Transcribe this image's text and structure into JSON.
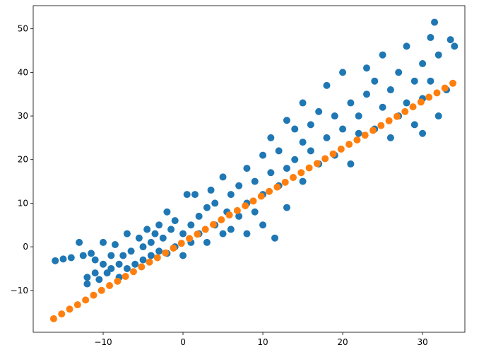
{
  "chart_data": {
    "type": "scatter",
    "xlim": [
      -18.76,
      35.3
    ],
    "ylim": [
      -19.6,
      55.3
    ],
    "xticks": [
      {
        "value": -10,
        "label": "−10"
      },
      0,
      10,
      20,
      30
    ],
    "yticks": [
      {
        "value": -10,
        "label": "−10"
      },
      0,
      10,
      20,
      30,
      40,
      50
    ],
    "grid": false,
    "series": [
      {
        "color": "#1f77b4",
        "x": [
          -16,
          -15,
          -14,
          -13,
          -12.5,
          -12,
          -12,
          -11.5,
          -11,
          -11,
          -10.5,
          -10,
          -10,
          -9.5,
          -9,
          -9,
          -8.5,
          -8,
          -8,
          -7.5,
          -7,
          -7,
          -6.5,
          -6,
          -5.5,
          -5,
          -5,
          -4.5,
          -4,
          -4,
          -3.5,
          -3,
          -3,
          -2.5,
          -2,
          -2,
          -1.5,
          -1,
          -1,
          0,
          0,
          0.5,
          1,
          1,
          1.5,
          2,
          2,
          3,
          3,
          3.5,
          4,
          4,
          5,
          5,
          5.5,
          6,
          6,
          7,
          7,
          8,
          8,
          8,
          9,
          9,
          10,
          10,
          10,
          11,
          11,
          11.5,
          12,
          12,
          13,
          13,
          13,
          14,
          14,
          15,
          15,
          15,
          16,
          16,
          17,
          17,
          18,
          18,
          19,
          19,
          20,
          20,
          21,
          21,
          22,
          22,
          23,
          23,
          24,
          24,
          25,
          25,
          26,
          26,
          27,
          27,
          28,
          28,
          29,
          29,
          30,
          30,
          31,
          31,
          31.5,
          32,
          33,
          33.5,
          34,
          32,
          30
        ],
        "values": [
          -3.2,
          -2.8,
          -2.5,
          1,
          -2,
          -7,
          -8.5,
          -1.5,
          -6,
          -3,
          -7.5,
          -4,
          1,
          -6,
          -2,
          -5,
          0.5,
          -4,
          -7,
          -2,
          3,
          -5,
          -1,
          -4,
          2,
          -3,
          0,
          4,
          -2,
          1,
          3,
          -1,
          5,
          2,
          -1.5,
          8,
          4,
          0,
          6,
          3,
          -2,
          12,
          5,
          1,
          12,
          3,
          7,
          9,
          1,
          13,
          5,
          10,
          3,
          16,
          8,
          12,
          4,
          14,
          7,
          10,
          18,
          3,
          15,
          8,
          12,
          21,
          5,
          17,
          25,
          2,
          14,
          22,
          18,
          29,
          9,
          20,
          27,
          15,
          24,
          33,
          22,
          28,
          19,
          31,
          25,
          37,
          21,
          30,
          27,
          40,
          19,
          33,
          30,
          26,
          35,
          41,
          27,
          38,
          32,
          44,
          25,
          36,
          40,
          30,
          33,
          46,
          38,
          28,
          42,
          34,
          48,
          38,
          51.5,
          44,
          36,
          47.5,
          46,
          30,
          26
        ]
      },
      {
        "color": "#ff7f0e",
        "x": [
          -16.2,
          -15.2,
          -14.2,
          -13.2,
          -12.2,
          -11.2,
          -10.2,
          -9.2,
          -8.2,
          -7.2,
          -6.2,
          -5.2,
          -4.2,
          -3.2,
          -2.2,
          -1.2,
          -0.2,
          0.8,
          1.8,
          2.8,
          3.8,
          4.8,
          5.8,
          6.8,
          7.8,
          8.8,
          9.8,
          10.8,
          11.8,
          12.8,
          13.8,
          14.8,
          15.8,
          16.8,
          17.8,
          18.8,
          19.8,
          20.8,
          21.8,
          22.8,
          23.8,
          24.8,
          25.8,
          26.8,
          27.8,
          28.8,
          29.8,
          30.8,
          31.8,
          32.8,
          33.8
        ],
        "values": [
          -16.5,
          -15.4,
          -14.3,
          -13.3,
          -12.2,
          -11.1,
          -10,
          -8.9,
          -7.9,
          -6.8,
          -5.7,
          -4.6,
          -3.5,
          -2.5,
          -1.4,
          -0.3,
          0.8,
          1.9,
          2.9,
          4,
          5.1,
          6.2,
          7.3,
          8.3,
          9.4,
          10.5,
          11.6,
          12.7,
          13.7,
          14.8,
          15.9,
          17,
          18.1,
          19.1,
          20.2,
          21.3,
          22.4,
          23.5,
          24.5,
          25.6,
          26.7,
          27.8,
          28.9,
          29.9,
          31,
          32.1,
          33.2,
          34.3,
          35.3,
          36.4,
          37.5
        ]
      }
    ]
  }
}
